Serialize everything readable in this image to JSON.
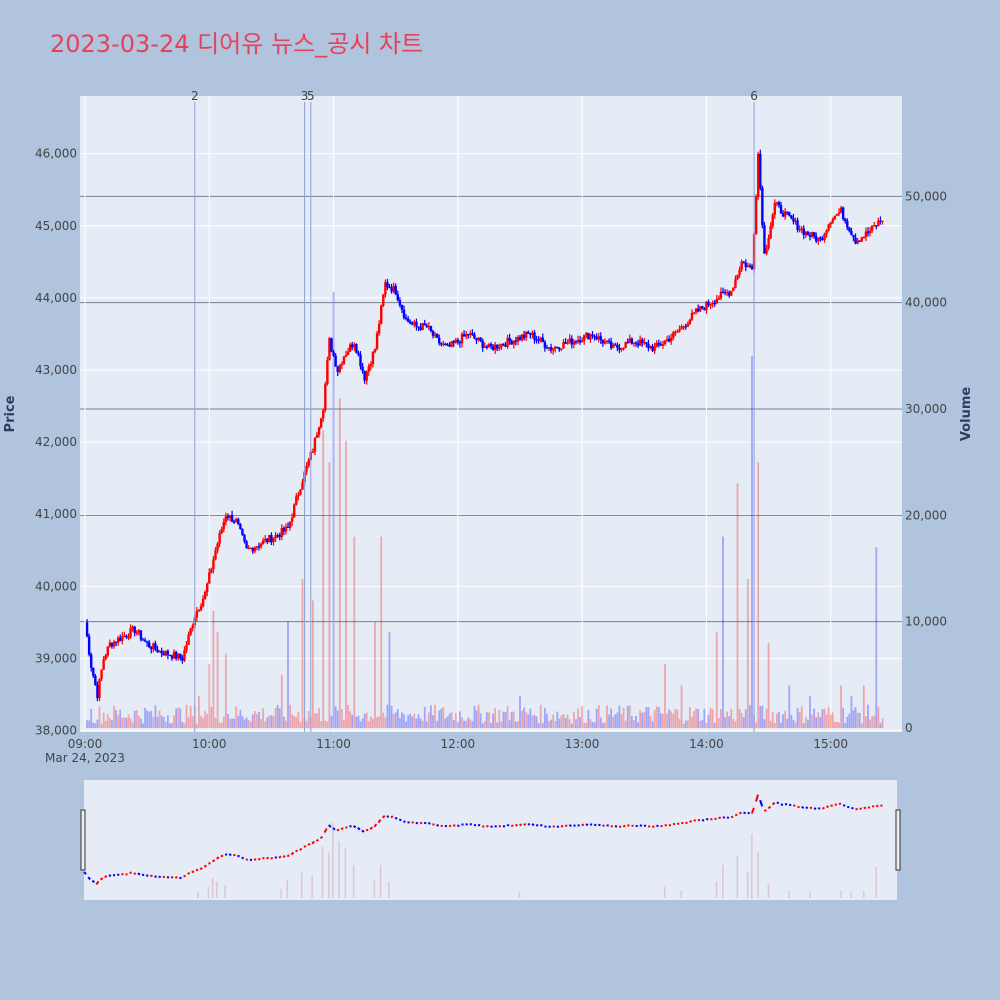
{
  "title": "2023-03-24 디어유 뉴스_공시 차트",
  "colors": {
    "background": "#b0c4de",
    "plot_bg": "#e5ecf6",
    "up": "#ff0000",
    "down": "#0000ff",
    "title": "#e8405a",
    "marker_line": "#8c9fdc",
    "hline": "#5a6478"
  },
  "chart_data": {
    "type": "candlestick",
    "ylabel": "Price",
    "y2label": "Volume",
    "date_label": "Mar 24, 2023",
    "ylim": [
      37980,
      46800
    ],
    "y2lim": [
      0,
      60000
    ],
    "x_ticks": [
      "09:00",
      "10:00",
      "11:00",
      "12:00",
      "13:00",
      "14:00",
      "15:00"
    ],
    "y_ticks": [
      "38,000",
      "39,000",
      "40,000",
      "41,000",
      "42,000",
      "43,000",
      "44,000",
      "45,000",
      "46,000"
    ],
    "y2_ticks": [
      "0",
      "10,000",
      "20,000",
      "30,000",
      "40,000",
      "50,000"
    ],
    "y_tick_values": [
      38000,
      39000,
      40000,
      41000,
      42000,
      43000,
      44000,
      45000,
      46000
    ],
    "y2_tick_values": [
      0,
      10000,
      20000,
      30000,
      40000,
      50000
    ],
    "price_path": [
      [
        "09:00",
        39500
      ],
      [
        "09:03",
        38900
      ],
      [
        "09:06",
        38500
      ],
      [
        "09:09",
        39000
      ],
      [
        "09:12",
        39200
      ],
      [
        "09:18",
        39300
      ],
      [
        "09:24",
        39400
      ],
      [
        "09:30",
        39200
      ],
      [
        "09:36",
        39100
      ],
      [
        "09:42",
        39050
      ],
      [
        "09:47",
        39000
      ],
      [
        "09:53",
        39600
      ],
      [
        "09:58",
        39900
      ],
      [
        "10:03",
        40500
      ],
      [
        "10:08",
        41000
      ],
      [
        "10:13",
        40900
      ],
      [
        "10:18",
        40500
      ],
      [
        "10:25",
        40600
      ],
      [
        "10:32",
        40700
      ],
      [
        "10:38",
        40800
      ],
      [
        "10:44",
        41400
      ],
      [
        "10:50",
        41900
      ],
      [
        "10:55",
        42500
      ],
      [
        "10:58",
        43400
      ],
      [
        "11:02",
        43000
      ],
      [
        "11:05",
        43200
      ],
      [
        "11:10",
        43400
      ],
      [
        "11:15",
        42900
      ],
      [
        "11:20",
        43300
      ],
      [
        "11:25",
        44200
      ],
      [
        "11:30",
        44100
      ],
      [
        "11:35",
        43700
      ],
      [
        "11:40",
        43600
      ],
      [
        "11:45",
        43600
      ],
      [
        "11:50",
        43400
      ],
      [
        "11:55",
        43300
      ],
      [
        "12:05",
        43500
      ],
      [
        "12:15",
        43300
      ],
      [
        "12:25",
        43400
      ],
      [
        "12:35",
        43500
      ],
      [
        "12:45",
        43300
      ],
      [
        "12:55",
        43400
      ],
      [
        "13:05",
        43500
      ],
      [
        "13:15",
        43300
      ],
      [
        "13:25",
        43400
      ],
      [
        "13:35",
        43300
      ],
      [
        "13:45",
        43500
      ],
      [
        "13:55",
        43800
      ],
      [
        "14:05",
        44000
      ],
      [
        "14:12",
        44100
      ],
      [
        "14:17",
        44500
      ],
      [
        "14:22",
        44400
      ],
      [
        "14:25",
        46000
      ],
      [
        "14:28",
        44600
      ],
      [
        "14:33",
        45300
      ],
      [
        "14:40",
        45100
      ],
      [
        "14:48",
        44900
      ],
      [
        "14:55",
        44800
      ],
      [
        "15:00",
        45100
      ],
      [
        "15:05",
        45200
      ],
      [
        "15:12",
        44800
      ],
      [
        "15:18",
        44900
      ],
      [
        "15:25",
        45100
      ]
    ],
    "volume_spikes": [
      [
        "09:55",
        3000
      ],
      [
        "10:00",
        6000
      ],
      [
        "10:02",
        11000
      ],
      [
        "10:04",
        9000
      ],
      [
        "10:08",
        7000
      ],
      [
        "10:35",
        5000
      ],
      [
        "10:38",
        10000
      ],
      [
        "10:45",
        14000
      ],
      [
        "10:50",
        12000
      ],
      [
        "10:55",
        28000
      ],
      [
        "10:58",
        25000
      ],
      [
        "11:00",
        41000
      ],
      [
        "11:03",
        31000
      ],
      [
        "11:06",
        27000
      ],
      [
        "11:10",
        18000
      ],
      [
        "11:20",
        10000
      ],
      [
        "11:23",
        18000
      ],
      [
        "11:27",
        9000
      ],
      [
        "12:30",
        3000
      ],
      [
        "13:40",
        6000
      ],
      [
        "13:48",
        4000
      ],
      [
        "14:05",
        9000
      ],
      [
        "14:08",
        18000
      ],
      [
        "14:15",
        23000
      ],
      [
        "14:20",
        14000
      ],
      [
        "14:22",
        35000
      ],
      [
        "14:25",
        25000
      ],
      [
        "14:30",
        8000
      ],
      [
        "14:40",
        4000
      ],
      [
        "14:50",
        3000
      ],
      [
        "15:05",
        4000
      ],
      [
        "15:10",
        3000
      ],
      [
        "15:16",
        4000
      ],
      [
        "15:22",
        17000
      ]
    ],
    "news_markers": [
      {
        "label": "2",
        "time": "09:53"
      },
      {
        "label": "3",
        "time": "10:46"
      },
      {
        "label": "5",
        "time": "10:49"
      },
      {
        "label": "6",
        "time": "14:23"
      }
    ]
  }
}
